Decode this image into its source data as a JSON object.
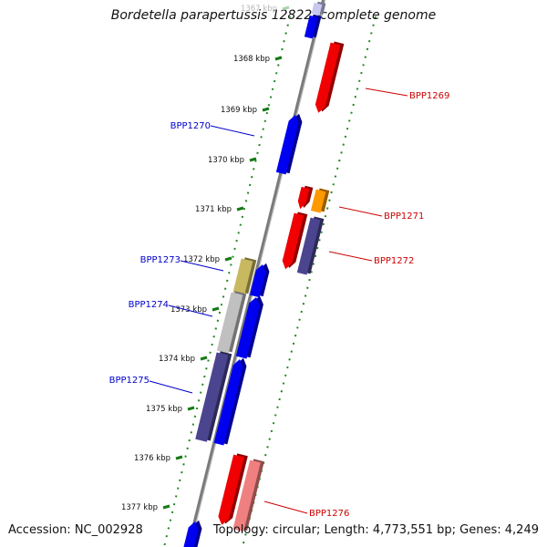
{
  "title": "Bordetella parapertussis 12822, complete genome",
  "accession": "Accession: NC_002928",
  "summary": "Topology: circular; Length: 4,773,551 bp; Genes: 4,249",
  "ticks": [
    {
      "label": "1367 kbp",
      "faded": true
    },
    {
      "label": "1368 kbp",
      "faded": false
    },
    {
      "label": "1369 kbp",
      "faded": false
    },
    {
      "label": "1370 kbp",
      "faded": false
    },
    {
      "label": "1371 kbp",
      "faded": false
    },
    {
      "label": "1372 kbp",
      "faded": false
    },
    {
      "label": "1373 kbp",
      "faded": false
    },
    {
      "label": "1374 kbp",
      "faded": false
    },
    {
      "label": "1375 kbp",
      "faded": false
    },
    {
      "label": "1376 kbp",
      "faded": false
    },
    {
      "label": "1377 kbp",
      "faded": false
    }
  ],
  "gene_labels": {
    "left": [
      "BPP1270",
      "BPP1273",
      "BPP1274",
      "BPP1275"
    ],
    "right": [
      "BPP1269",
      "BPP1271",
      "BPP1272",
      "BPP1276"
    ]
  },
  "colors": {
    "forward_blue": "#0000f0",
    "reverse_red": "#f00000",
    "orange": "#ff9900",
    "slate": "#4b4590",
    "olive": "#c8b860",
    "grey": "#c0c0c0",
    "pink": "#f08080",
    "pale_blue": "#c8c8f0",
    "dotted_track": "#228822",
    "backbone": "#808080",
    "left_label": "#0000cc",
    "right_label": "#cc0000"
  }
}
